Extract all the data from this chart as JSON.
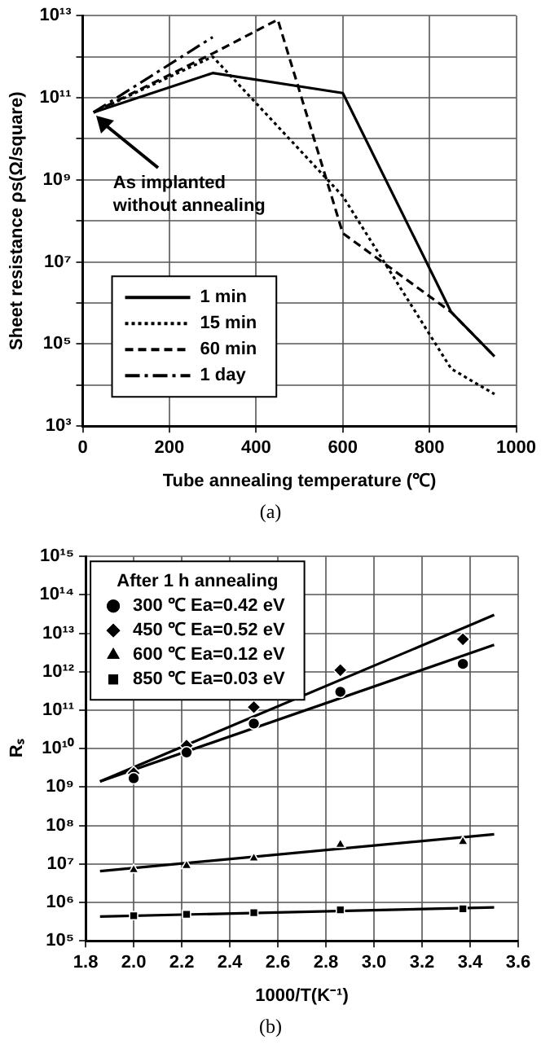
{
  "chart_data": [
    {
      "type": "line",
      "xlabel": "Tube annealing temperature (℃)",
      "ylabel": "Sheet resistance ρs(Ω/square)",
      "log": "y",
      "grid": true,
      "legend": "bottom left",
      "marker": "none",
      "xlim": [
        0,
        1000
      ],
      "xticks": [
        0,
        200,
        400,
        600,
        800,
        1000
      ],
      "ylim": [
        1000.0,
        10000000000000.0
      ],
      "yticks": [
        {
          "value": 1000.0,
          "label": "10³"
        },
        {
          "value": 10000.0,
          "label": null
        },
        {
          "value": 100000.0,
          "label": "10⁵"
        },
        {
          "value": 1000000.0,
          "label": null
        },
        {
          "value": 10000000.0,
          "label": "10⁷"
        },
        {
          "value": 100000000.0,
          "label": null
        },
        {
          "value": 1000000000.0,
          "label": "10⁹"
        },
        {
          "value": 10000000000.0,
          "label": null
        },
        {
          "value": 100000000000.0,
          "label": "10¹¹"
        },
        {
          "value": 1000000000000.0,
          "label": null
        },
        {
          "value": 10000000000000.0,
          "label": "10¹³"
        }
      ],
      "series": [
        {
          "name": "1 min",
          "color": "#000000",
          "line_style": "solid",
          "x": [
            25,
            300,
            600,
            850,
            950
          ],
          "values": [
            44000000000.0,
            400000000000.0,
            130000000000.0,
            600000.0,
            50000.0
          ]
        },
        {
          "name": "15 min",
          "color": "#000000",
          "line_style": "dotted",
          "x": [
            25,
            300,
            600,
            850,
            950
          ],
          "values": [
            44000000000.0,
            1000000000000.0,
            400000000.0,
            25000.0,
            6000.0
          ]
        },
        {
          "name": "60 min",
          "color": "#000000",
          "line_style": "dashed",
          "x": [
            25,
            300,
            450,
            600,
            850,
            950
          ],
          "values": [
            44000000000.0,
            1200000000000.0,
            8000000000000.0,
            50000000.0,
            600000.0,
            50000.0
          ]
        },
        {
          "name": "1 day",
          "color": "#000000",
          "line_style": "dashdot",
          "x": [
            25,
            300
          ],
          "values": [
            44000000000.0,
            3000000000000.0
          ]
        }
      ],
      "annotations": [
        "As implanted\nwithout annealing",
        "(a)"
      ]
    },
    {
      "type": "scatter",
      "xlabel": "1000/T(K⁻¹)",
      "ylabel": "Rₛ",
      "legend_title": "After 1 h annealing",
      "log": "y",
      "grid": true,
      "legend": "top left",
      "xlim": [
        1.8,
        3.6
      ],
      "xticks": [
        {
          "value": 1.8,
          "label": "1.8"
        },
        {
          "value": 2,
          "label": "2.0"
        },
        {
          "value": 2.2,
          "label": "2.2"
        },
        {
          "value": 2.4,
          "label": "2.4"
        },
        {
          "value": 2.6,
          "label": "2.6"
        },
        {
          "value": 2.8,
          "label": "2.8"
        },
        {
          "value": 3,
          "label": "3.0"
        },
        {
          "value": 3.2,
          "label": "3.2"
        },
        {
          "value": 3.4,
          "label": "3.4"
        },
        {
          "value": 3.6,
          "label": "3.6"
        }
      ],
      "ylim": [
        100000.0,
        1000000000000000.0
      ],
      "yticks": [
        {
          "value": 100000.0,
          "label": "10⁵"
        },
        {
          "value": 1000000.0,
          "label": "10⁶"
        },
        {
          "value": 10000000.0,
          "label": "10⁷"
        },
        {
          "value": 100000000.0,
          "label": "10⁸"
        },
        {
          "value": 1000000000.0,
          "label": "10⁹"
        },
        {
          "value": 10000000000.0,
          "label": "10¹⁰"
        },
        {
          "value": 100000000000.0,
          "label": "10¹¹"
        },
        {
          "value": 1000000000000.0,
          "label": "10¹²"
        },
        {
          "value": 10000000000000.0,
          "label": "10¹³"
        },
        {
          "value": 100000000000000.0,
          "label": "10¹⁴"
        },
        {
          "value": 1000000000000000.0,
          "label": "10¹⁵"
        }
      ],
      "series": [
        {
          "name": "300 ℃ Ea=0.42 eV",
          "color": "#000000",
          "marker": "circle",
          "x": [
            2,
            2.22,
            2.5,
            2.86,
            3.37
          ],
          "values": [
            1700000000.0,
            8000000000.0,
            45000000000.0,
            300000000000.0,
            1600000000000.0
          ]
        },
        {
          "name": "450 ℃ Ea=0.52 eV",
          "color": "#000000",
          "marker": "diamond",
          "x": [
            2,
            2.22,
            2.5,
            2.86,
            3.37
          ],
          "values": [
            2300000000.0,
            12000000000.0,
            120000000000.0,
            1100000000000.0,
            7000000000000.0
          ]
        },
        {
          "name": "600 ℃ Ea=0.12 eV",
          "color": "#000000",
          "marker": "triangle",
          "x": [
            2,
            2.22,
            2.5,
            2.86,
            3.37
          ],
          "values": [
            7000000.0,
            9000000.0,
            14000000.0,
            32000000.0,
            38000000.0
          ]
        },
        {
          "name": "850 ℃ Ea=0.03 eV",
          "color": "#000000",
          "marker": "square",
          "x": [
            2,
            2.22,
            2.5,
            2.86,
            3.37
          ],
          "values": [
            450000.0,
            490000.0,
            540000.0,
            640000.0,
            680000.0
          ]
        },
        {
          "type": "line",
          "color": "#000000",
          "marker": "none",
          "x": [
            1.86,
            3.5
          ],
          "values": [
            1400000000.0,
            5000000000000.0
          ]
        },
        {
          "type": "line",
          "color": "#000000",
          "marker": "none",
          "x": [
            1.86,
            3.5
          ],
          "values": [
            1400000000.0,
            30000000000000.0
          ]
        },
        {
          "type": "line",
          "color": "#000000",
          "marker": "none",
          "x": [
            1.86,
            3.5
          ],
          "values": [
            6500000.0,
            59000000.0
          ]
        },
        {
          "type": "line",
          "color": "#000000",
          "marker": "none",
          "x": [
            1.86,
            3.5
          ],
          "values": [
            430000.0,
            740000.0
          ]
        }
      ],
      "annotations": [
        "(b)"
      ]
    }
  ]
}
